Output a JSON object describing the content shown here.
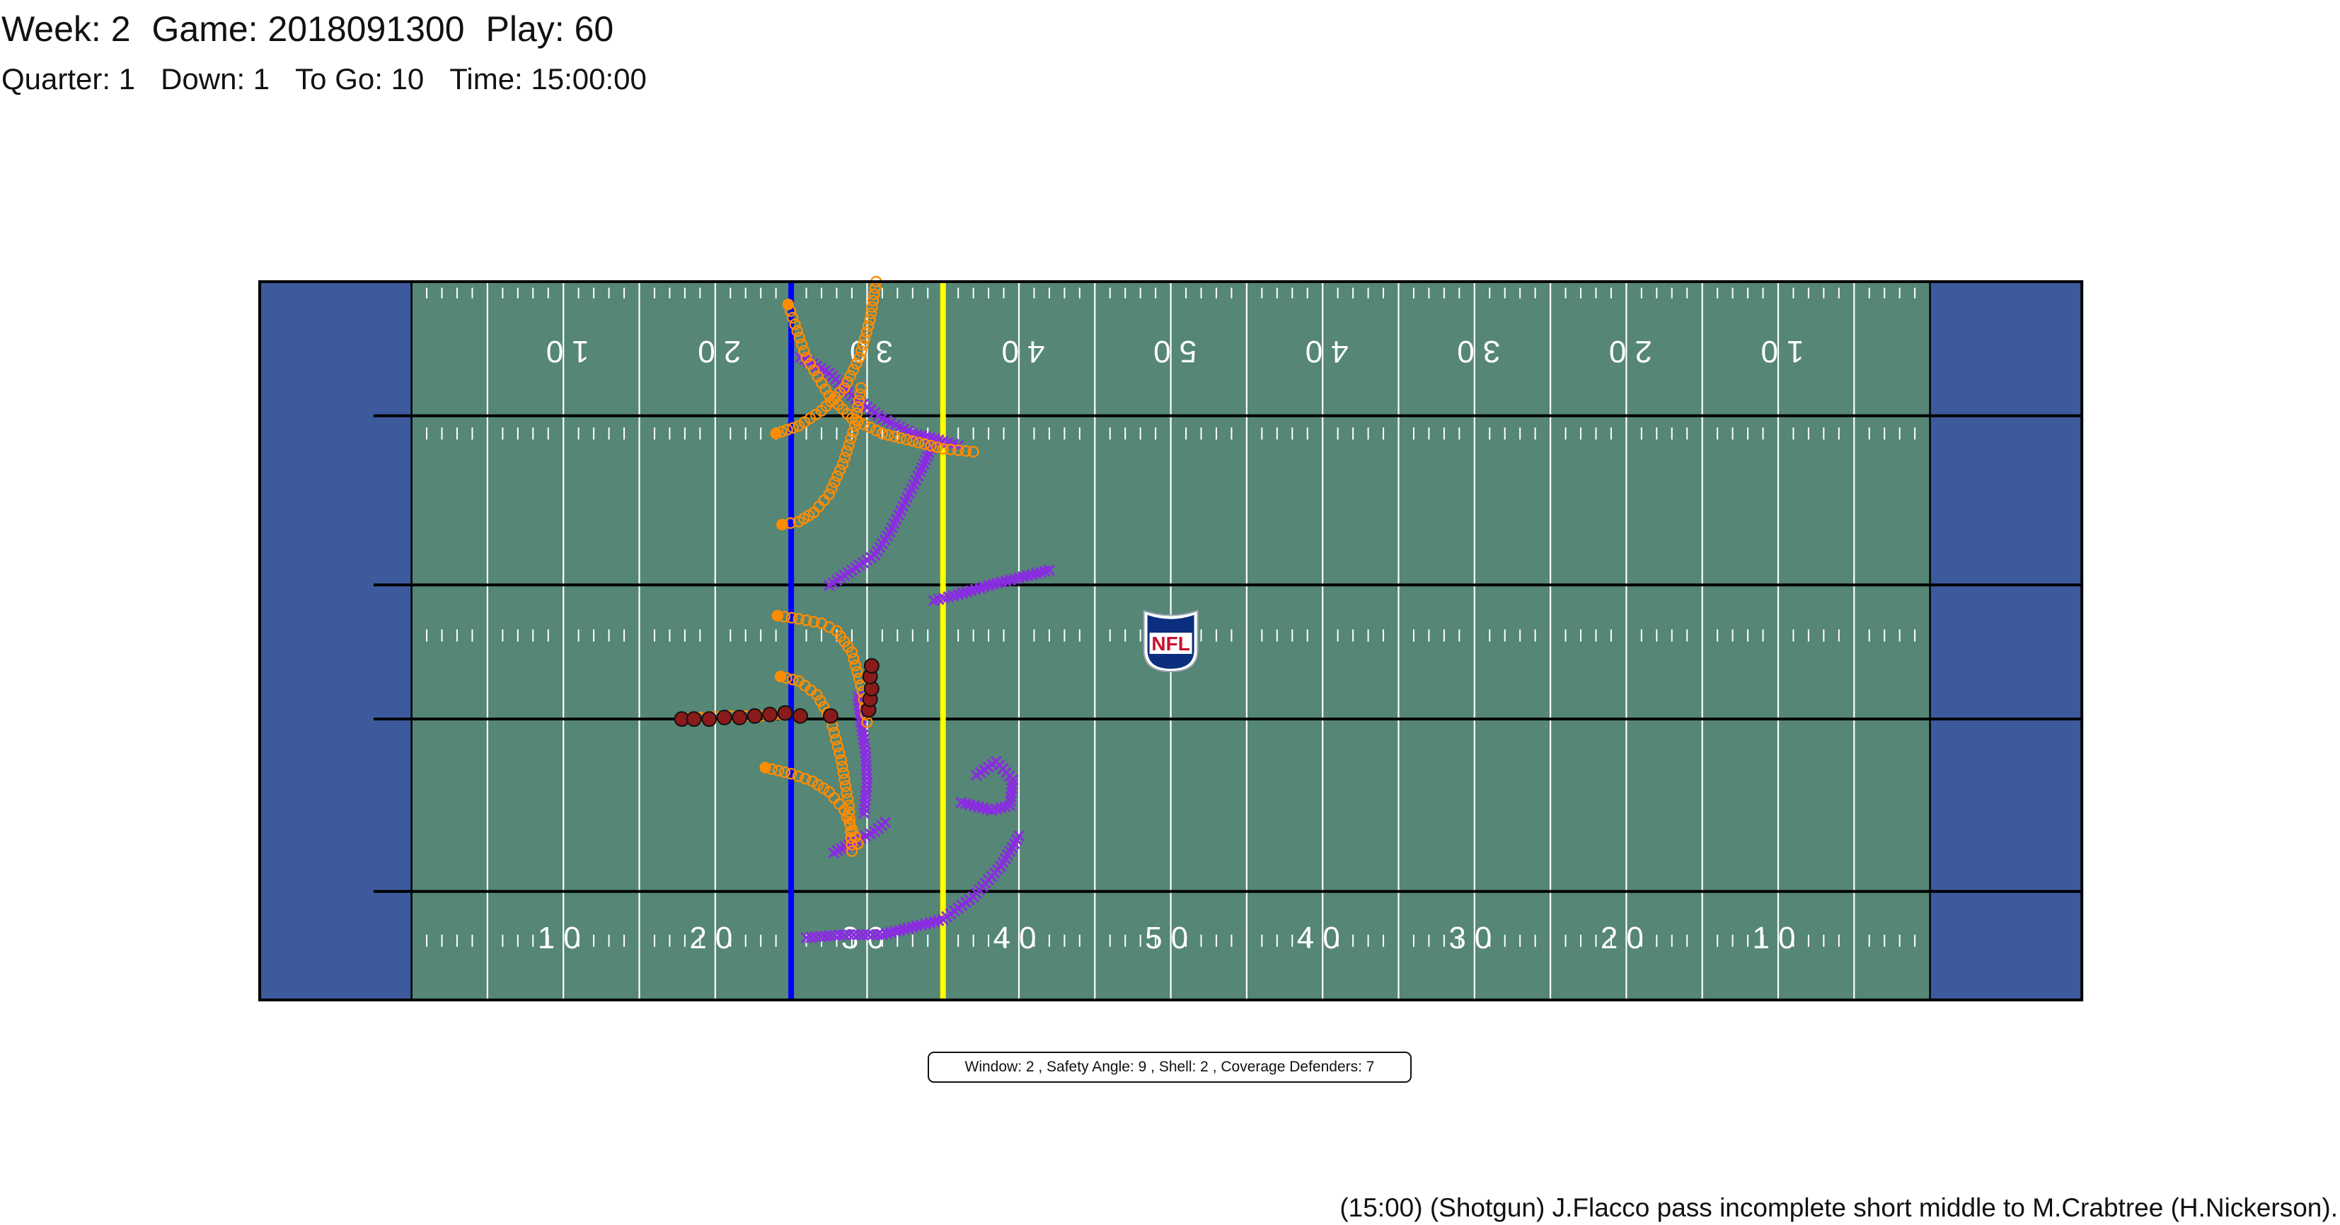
{
  "header": {
    "line1": {
      "week": "Week: 2",
      "game": "Game: 2018091300",
      "play": "Play: 60"
    },
    "line2": {
      "quarter": "Quarter: 1",
      "down": "Down: 1",
      "to_go": "To Go: 10",
      "time": "Time: 15:00:00"
    }
  },
  "stats_box": "Window: 2 , Safety Angle: 9 , Shell: 2 , Coverage Defenders: 7",
  "play_description": "(15:00) (Shotgun) J.Flacco pass incomplete short middle to M.Crabtree (H.Nickerson).",
  "logo_text": "NFL",
  "colors": {
    "field": "#558676",
    "endzone": "#3d5a9c",
    "line_of_scrimmage": "#0000ff",
    "first_down_line": "#ffff00",
    "offense": "#ff8c00",
    "defense": "#8a2be2",
    "football": "#8b1a1a",
    "logo_shield": "#0b2f7e",
    "logo_red": "#c8102e"
  },
  "field": {
    "yard_number_labels": [
      "10",
      "20",
      "30",
      "40",
      "50",
      "40",
      "30",
      "20",
      "10"
    ],
    "line_of_scrimmage_yardline": 25,
    "first_down_yardline": 35
  },
  "tracks": {
    "offense": [
      [
        [
          24.8,
          1.5
        ],
        [
          26,
          5
        ],
        [
          27.5,
          7.5
        ],
        [
          29,
          9
        ],
        [
          31,
          10
        ],
        [
          33,
          10.5
        ],
        [
          35,
          11
        ],
        [
          37,
          11.2
        ]
      ],
      [
        [
          24,
          10
        ],
        [
          25.5,
          9.5
        ],
        [
          27,
          8.5
        ],
        [
          28.5,
          7
        ],
        [
          29.5,
          5
        ],
        [
          30.2,
          2.5
        ],
        [
          30.6,
          0
        ]
      ],
      [
        [
          24.4,
          16
        ],
        [
          25.5,
          15.8
        ],
        [
          26.5,
          15.2
        ],
        [
          27.5,
          14
        ],
        [
          28.4,
          12
        ],
        [
          29.2,
          9.5
        ],
        [
          29.6,
          7
        ]
      ],
      [
        [
          24.1,
          22
        ],
        [
          25.5,
          22.2
        ],
        [
          27,
          22.5
        ],
        [
          28,
          23
        ],
        [
          29,
          24.4
        ],
        [
          29.7,
          27
        ],
        [
          30,
          29
        ]
      ],
      [
        [
          24.3,
          26
        ],
        [
          25.5,
          26.3
        ],
        [
          26.7,
          27.2
        ],
        [
          27.6,
          28.8
        ],
        [
          28.3,
          31.5
        ],
        [
          28.8,
          34.5
        ],
        [
          29,
          37.5
        ]
      ],
      [
        [
          23.3,
          32
        ],
        [
          25,
          32.4
        ],
        [
          26.4,
          32.9
        ],
        [
          27.5,
          33.6
        ],
        [
          28.5,
          34.8
        ],
        [
          29.4,
          37
        ]
      ],
      [
        [
          17.7,
          28.8
        ],
        [
          19,
          28.7
        ],
        [
          21,
          28.6
        ],
        [
          23,
          28.6
        ],
        [
          24.3,
          28.5
        ]
      ]
    ],
    "defense": [
      [
        [
          25.6,
          5
        ],
        [
          27.5,
          6
        ],
        [
          29,
          7.5
        ],
        [
          31,
          9
        ],
        [
          33,
          10
        ],
        [
          35,
          10.5
        ],
        [
          36,
          10.8
        ]
      ],
      [
        [
          27.5,
          20
        ],
        [
          29,
          19
        ],
        [
          30.5,
          18
        ],
        [
          31.5,
          16.5
        ],
        [
          32.5,
          14.5
        ],
        [
          33.5,
          12.5
        ],
        [
          34.2,
          11
        ]
      ],
      [
        [
          34.4,
          21
        ],
        [
          36,
          20.6
        ],
        [
          38,
          20
        ],
        [
          40,
          19.5
        ],
        [
          42,
          19
        ]
      ],
      [
        [
          29.4,
          27.3
        ],
        [
          29.6,
          29
        ],
        [
          29.9,
          31
        ],
        [
          30,
          33
        ],
        [
          29.8,
          35
        ]
      ],
      [
        [
          36.2,
          34.3
        ],
        [
          38.2,
          34.8
        ],
        [
          39.4,
          34.5
        ],
        [
          39.6,
          32.8
        ],
        [
          38.5,
          31.6
        ],
        [
          37.2,
          32.5
        ]
      ],
      [
        [
          27.8,
          37.6
        ],
        [
          29.3,
          36.8
        ],
        [
          30.5,
          36.2
        ],
        [
          31.2,
          35.6
        ]
      ],
      [
        [
          26,
          43.2
        ],
        [
          28.5,
          43
        ],
        [
          31,
          43
        ],
        [
          33,
          42.5
        ],
        [
          35,
          42
        ],
        [
          37,
          40.5
        ],
        [
          38.8,
          38.5
        ],
        [
          40,
          36.5
        ]
      ]
    ],
    "football": [
      [
        17.8,
        28.8
      ],
      [
        18.6,
        28.8
      ],
      [
        19.6,
        28.8
      ],
      [
        20.6,
        28.7
      ],
      [
        21.6,
        28.7
      ],
      [
        22.6,
        28.6
      ],
      [
        23.6,
        28.5
      ],
      [
        24.6,
        28.4
      ],
      [
        25.6,
        28.6
      ],
      [
        27.6,
        28.6
      ],
      [
        30.1,
        28.2
      ],
      [
        30.2,
        27.5
      ],
      [
        30.3,
        26.8
      ],
      [
        30.2,
        26.0
      ],
      [
        30.3,
        25.3
      ]
    ]
  }
}
